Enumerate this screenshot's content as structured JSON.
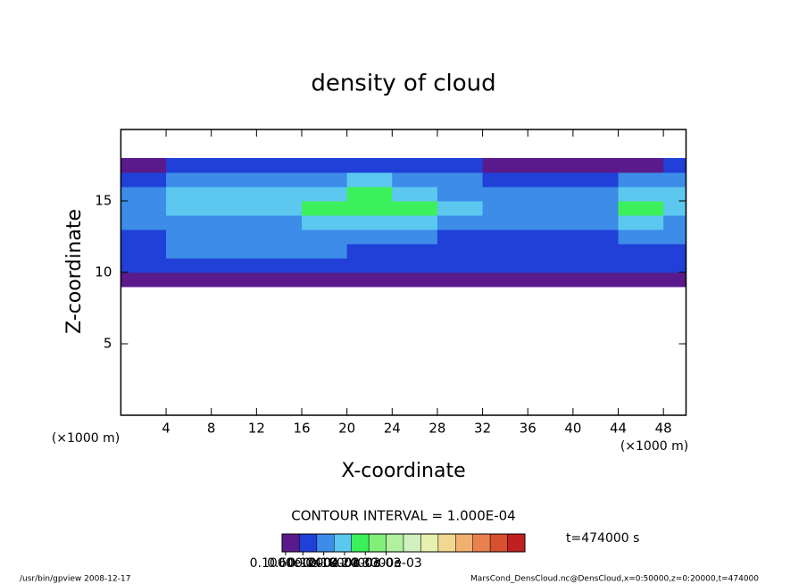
{
  "chart_data": {
    "type": "heatmap",
    "title": "density of cloud",
    "x_label": "X-coordinate",
    "y_label": "Z-coordinate",
    "x_unit": "(×1000 m)",
    "y_unit": "(×1000 m)",
    "xlim": [
      0,
      50
    ],
    "ylim": [
      0,
      20
    ],
    "xticks": [
      4,
      8,
      12,
      16,
      20,
      24,
      28,
      32,
      36,
      40,
      44,
      48
    ],
    "yticks": [
      5,
      10,
      15
    ],
    "x_bins": [
      0,
      4,
      8,
      12,
      16,
      20,
      24,
      28,
      32,
      36,
      40,
      44,
      48,
      50
    ],
    "z_bins": [
      9,
      10,
      11,
      12,
      13,
      14,
      15,
      16,
      17,
      18
    ],
    "values": [
      [
        2e-05,
        2e-05,
        2e-05,
        2e-05,
        2e-05,
        2e-05,
        2e-05,
        2e-05,
        2e-05,
        2e-05,
        2e-05,
        2e-05,
        2e-05
      ],
      [
        6e-05,
        7e-05,
        9e-05,
        8e-05,
        7e-05,
        6e-05,
        6e-05,
        6e-05,
        5e-05,
        5e-05,
        5e-05,
        5e-05,
        6e-05
      ],
      [
        8e-05,
        0.0001,
        0.00013,
        0.00012,
        0.0001,
        9e-05,
        8e-05,
        8e-05,
        7e-05,
        7e-05,
        7e-05,
        8e-05,
        8e-05
      ],
      [
        9e-05,
        0.00011,
        0.00012,
        0.00012,
        0.00011,
        0.0001,
        0.0001,
        9e-05,
        8e-05,
        8e-05,
        9e-05,
        0.0001,
        0.0001
      ],
      [
        0.0001,
        0.00012,
        0.00013,
        0.00014,
        0.00016,
        0.00016,
        0.00015,
        0.00012,
        0.0001,
        0.0001,
        0.00012,
        0.00016,
        0.00014
      ],
      [
        0.00012,
        0.00016,
        0.00017,
        0.00018,
        0.00021,
        0.00022,
        0.0002,
        0.00016,
        0.00011,
        0.00011,
        0.00014,
        0.00021,
        0.00018
      ],
      [
        0.00011,
        0.00016,
        0.00019,
        0.00017,
        0.00018,
        0.00021,
        0.00019,
        0.00014,
        0.0001,
        0.0001,
        0.00011,
        0.00016,
        0.00015
      ],
      [
        9e-05,
        0.00013,
        0.00014,
        0.00013,
        0.00014,
        0.00015,
        0.00014,
        0.00012,
        9e-05,
        9e-05,
        9e-05,
        0.00012,
        0.00012
      ],
      [
        4e-05,
        6e-05,
        6e-05,
        6e-05,
        6e-05,
        6e-05,
        6e-05,
        5e-05,
        4e-05,
        3e-05,
        3e-05,
        4e-05,
        5e-05
      ]
    ],
    "levels": [
      0,
      5e-05,
      0.0001,
      0.00015,
      0.0002,
      0.00025,
      0.0003,
      0.00035,
      0.0004,
      0.00045,
      0.0005,
      0.00055,
      0.0006,
      0.00065,
      0.0007
    ],
    "colors": [
      "#5a1a8c",
      "#2040d8",
      "#3c8ce8",
      "#5cc8f0",
      "#3cf05c",
      "#80f078",
      "#b0f0a0",
      "#d0f0c0",
      "#e8f0b0",
      "#f0d890",
      "#f0b070",
      "#e88050",
      "#d85030",
      "#c02020"
    ],
    "colorbar_ticks": [
      {
        "value": 1e-05,
        "label": "0.1000e-04"
      },
      {
        "value": 6e-05,
        "label": "0.6000e-04"
      },
      {
        "value": 0.00012,
        "label": "0.1200e-03"
      },
      {
        "value": 0.00018,
        "label": "0.1800e-03"
      },
      {
        "value": 0.00024,
        "label": "0.2400e-03"
      },
      {
        "value": 0.0003,
        "label": "0.3000e-03"
      }
    ],
    "contour_interval": "CONTOUR INTERVAL = 1.000E-04",
    "time": "t=474000 s",
    "footer_left": "/usr/bin/gpview  2008-12-17",
    "footer_right": "MarsCond_DensCloud.nc@DensCloud,x=0:50000,z=0:20000,t=474000"
  }
}
